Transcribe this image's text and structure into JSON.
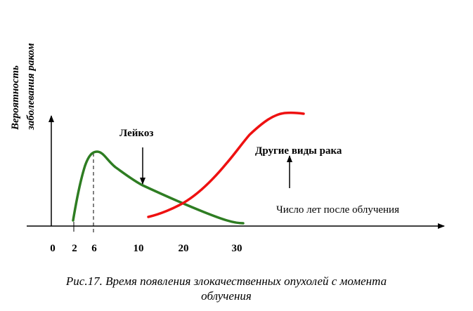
{
  "y_axis_title": {
    "line1": "Вероятность",
    "line2": "заболевания раком"
  },
  "x_axis_title": "Число лет после облучения",
  "x_ticks": [
    {
      "label": "0",
      "value": 0
    },
    {
      "label": "2",
      "value": 2
    },
    {
      "label": "6",
      "value": 6
    },
    {
      "label": "10",
      "value": 10
    },
    {
      "label": "20",
      "value": 20
    },
    {
      "label": "30",
      "value": 30
    }
  ],
  "curves": [
    {
      "label": "Лейкоз",
      "color": "#2e7d22"
    },
    {
      "label": "Другие виды рака",
      "color": "#ee1111"
    }
  ],
  "caption": {
    "line1": "Рис.17. Время появления злокачественных опухолей с момента",
    "line2": "облучения"
  }
}
